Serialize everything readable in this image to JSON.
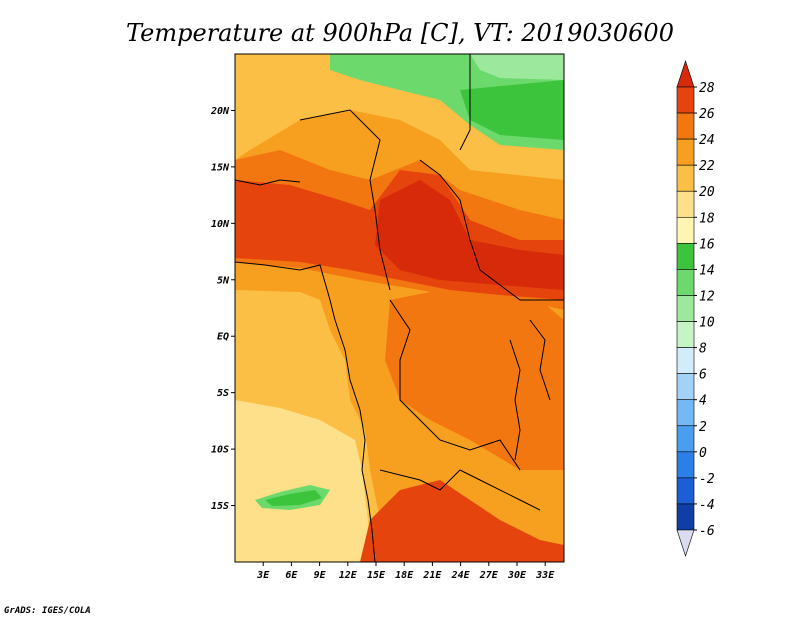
{
  "title": "Temperature at 900hPa [C], VT: 2019030600",
  "credit": "GrADS: IGES/COLA",
  "map": {
    "lon_range": [
      0,
      35
    ],
    "lat_range": [
      -20,
      25
    ],
    "lon_ticks": [
      {
        "value": 3,
        "label": "3E"
      },
      {
        "value": 6,
        "label": "6E"
      },
      {
        "value": 9,
        "label": "9E"
      },
      {
        "value": 12,
        "label": "12E"
      },
      {
        "value": 15,
        "label": "15E"
      },
      {
        "value": 18,
        "label": "18E"
      },
      {
        "value": 21,
        "label": "21E"
      },
      {
        "value": 24,
        "label": "24E"
      },
      {
        "value": 27,
        "label": "27E"
      },
      {
        "value": 30,
        "label": "30E"
      },
      {
        "value": 33,
        "label": "33E"
      }
    ],
    "lat_ticks": [
      {
        "value": 20,
        "label": "20N"
      },
      {
        "value": 15,
        "label": "15N"
      },
      {
        "value": 10,
        "label": "10N"
      },
      {
        "value": 5,
        "label": "5N"
      },
      {
        "value": 0,
        "label": "EQ"
      },
      {
        "value": -5,
        "label": "5S"
      },
      {
        "value": -10,
        "label": "10S"
      },
      {
        "value": -15,
        "label": "15S"
      }
    ]
  },
  "colorbar": {
    "min": -6,
    "max": 28,
    "step": 2,
    "labels": [
      "28",
      "26",
      "24",
      "22",
      "20",
      "18",
      "16",
      "14",
      "12",
      "10",
      "8",
      "6",
      "4",
      "2",
      "0",
      "-2",
      "-4",
      "-6"
    ],
    "colors": [
      "#0a1a6e",
      "#0f3ea6",
      "#1a5fd6",
      "#2b7fe6",
      "#4a9ef0",
      "#74b8f5",
      "#a3d2f9",
      "#d2ecfc",
      "#c5f5c5",
      "#9ce89c",
      "#6bd96b",
      "#3cc43c",
      "#fff5b3",
      "#fee08b",
      "#fbbf45",
      "#f7a020",
      "#f27711",
      "#e6440d",
      "#d62a0a"
    ]
  },
  "regions": [
    {
      "name": "orange-base",
      "color": "#f7a020"
    },
    {
      "name": "atlantic-light",
      "color": "#fbbf45"
    },
    {
      "name": "atlantic-pale",
      "color": "#fee08b"
    },
    {
      "name": "sahara-north-yellow",
      "color": "#fbbf45"
    },
    {
      "name": "sahel-dark-orange",
      "color": "#f27711"
    },
    {
      "name": "central-red-band",
      "color": "#e6440d"
    },
    {
      "name": "central-core",
      "color": "#d62a0a"
    },
    {
      "name": "congo-orange",
      "color": "#f27711"
    },
    {
      "name": "southern-red",
      "color": "#e6440d"
    },
    {
      "name": "north-green",
      "color": "#3cc43c"
    },
    {
      "name": "north-light-green",
      "color": "#6bd96b"
    },
    {
      "name": "north-pale-green",
      "color": "#9ce89c"
    },
    {
      "name": "atlantic-green-blob",
      "color": "#3cc43c"
    },
    {
      "name": "atlantic-lightgreen-blob",
      "color": "#6bd96b"
    }
  ]
}
